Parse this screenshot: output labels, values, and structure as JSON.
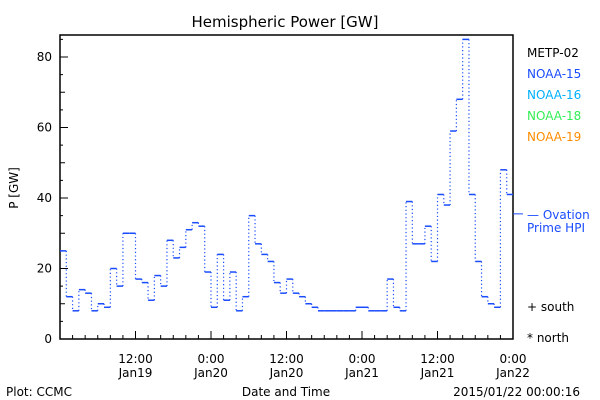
{
  "chart_data": {
    "type": "line",
    "title": "Hemispheric Power [GW]",
    "xlabel": "Date and Time",
    "ylabel": "P [GW]",
    "ylim": [
      0,
      86
    ],
    "xlim_hours": [
      0,
      72
    ],
    "yticks": [
      0,
      20,
      40,
      60,
      80
    ],
    "xticks": [
      {
        "hour": 12,
        "line1": "12:00",
        "line2": "Jan19"
      },
      {
        "hour": 24,
        "line1": "0:00",
        "line2": "Jan20"
      },
      {
        "hour": 36,
        "line1": "12:00",
        "line2": "Jan20"
      },
      {
        "hour": 48,
        "line1": "0:00",
        "line2": "Jan21"
      },
      {
        "hour": 60,
        "line1": "12:00",
        "line2": "Jan21"
      },
      {
        "hour": 72,
        "line1": "0:00",
        "line2": "Jan22"
      }
    ],
    "series": [
      {
        "name": "NOAA-15",
        "color": "#1a4cff",
        "step_hours": 1,
        "values": [
          25,
          12,
          8,
          14,
          13,
          8,
          10,
          9,
          20,
          15,
          30,
          30,
          17,
          16,
          11,
          18,
          15,
          28,
          23,
          26,
          31,
          33,
          32,
          19,
          9,
          24,
          11,
          19,
          8,
          12,
          35,
          27,
          24,
          22,
          16,
          13,
          17,
          13,
          12,
          10,
          9,
          8,
          8,
          8,
          8,
          8,
          8,
          9,
          9,
          8,
          8,
          8,
          17,
          9,
          8,
          39,
          27,
          27,
          32,
          22,
          41,
          38,
          59,
          68,
          85,
          41,
          22,
          12,
          10,
          9,
          48,
          41
        ]
      }
    ],
    "legend": [
      {
        "label": "METP-02",
        "color": "#000000"
      },
      {
        "label": "NOAA-15",
        "color": "#1a4cff"
      },
      {
        "label": "NOAA-16",
        "color": "#00b0ff"
      },
      {
        "label": "NOAA-18",
        "color": "#33ee55"
      },
      {
        "label": "NOAA-19",
        "color": "#ff8c00"
      }
    ],
    "ovation": {
      "label1": "— Ovation",
      "label2": "Prime HPI",
      "value": 35.5,
      "color": "#1a4cff"
    },
    "markers": {
      "south": "+ south",
      "north": "* north"
    }
  },
  "footer": {
    "plot": "Plot: CCMC",
    "timestamp": "2015/01/22 00:00:16"
  }
}
